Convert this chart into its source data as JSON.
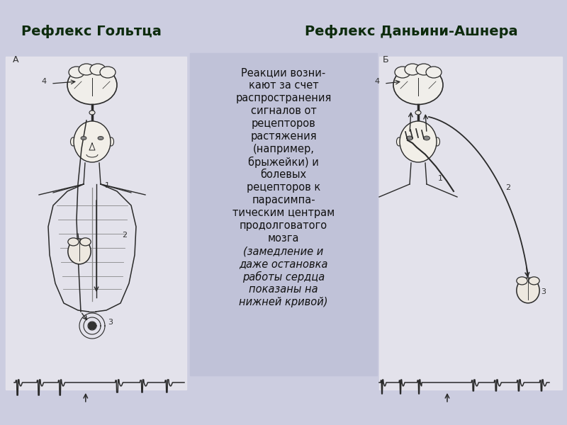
{
  "background_color": "#cccde0",
  "center_panel_color": "#c0c2d8",
  "title_left": "Рефлекс Гольтца",
  "title_right": "Рефлекс Даньини-Ашнера",
  "title_color": "#0d2b0d",
  "title_fontsize": 14,
  "title_fontweight": "bold",
  "description_lines_normal": [
    "Реакции возни-",
    "кают за счет",
    "распространения",
    "сигналов от",
    "рецепторов",
    "растяжения",
    "(например,",
    "брыжейки) и",
    "болевых",
    "рецепторов к",
    "парасимпа-",
    "тическим центрам",
    "продолговатого",
    "мозга"
  ],
  "description_lines_italic": [
    "(замедление и",
    "даже остановка",
    "работы сердца",
    "показаны на",
    "нижней кривой)"
  ],
  "description_fontsize": 10.5,
  "description_color": "#111111",
  "sketch_color": "#2a2a2a",
  "label_color": "#333333",
  "fig_width": 8.0,
  "fig_height": 6.0
}
